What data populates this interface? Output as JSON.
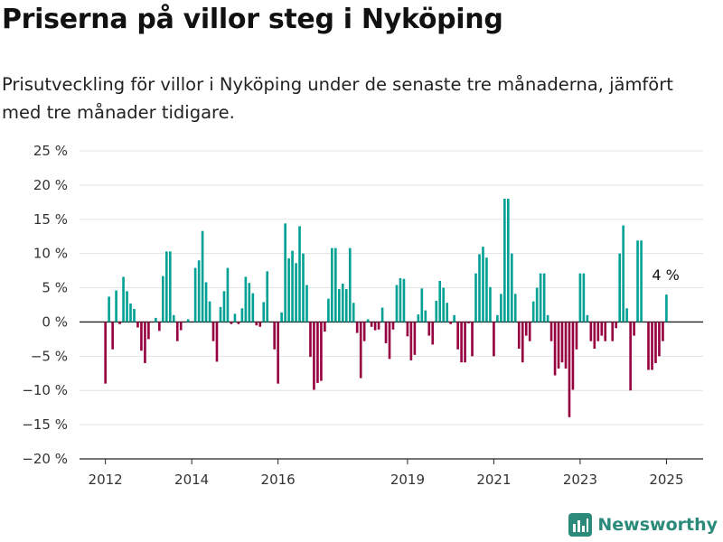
{
  "title": "Priserna på villor steg i Nyköping",
  "subtitle": "Prisutveckling för villor i Nyköping under de senaste tre månaderna, jämfört med tre månader tidigare.",
  "brand": "Newsworthy",
  "colors": {
    "positive": "#00a195",
    "negative": "#960040",
    "grid": "#e3e3e3",
    "zero": "#222222",
    "brand": "#2b8a7a"
  },
  "chart_data": {
    "type": "bar",
    "y_tick_labels": [
      "25 %",
      "20 %",
      "15 %",
      "10 %",
      "5 %",
      "0 %",
      "−5 %",
      "−10 %",
      "−15 %",
      "−20 %"
    ],
    "y_ticks": [
      25,
      20,
      15,
      10,
      5,
      0,
      -5,
      -10,
      -15,
      -20
    ],
    "ylim": [
      -20,
      25
    ],
    "x_tick_labels": [
      "2012",
      "2014",
      "2016",
      "2019",
      "2021",
      "2023",
      "2025"
    ],
    "x_ticks": [
      2012.0,
      2014.0,
      2016.0,
      2019.0,
      2021.0,
      2023.0,
      2025.0
    ],
    "xlim": [
      2011.4,
      2025.85
    ],
    "grid": true,
    "annotation": {
      "text": "4 %",
      "x": 2025.0,
      "y": 4
    },
    "x": [
      2012.0,
      2012.083,
      2012.167,
      2012.25,
      2012.333,
      2012.417,
      2012.5,
      2012.583,
      2012.667,
      2012.75,
      2012.833,
      2012.917,
      2013.0,
      2013.083,
      2013.167,
      2013.25,
      2013.333,
      2013.417,
      2013.5,
      2013.583,
      2013.667,
      2013.75,
      2013.833,
      2013.917,
      2014.0,
      2014.083,
      2014.167,
      2014.25,
      2014.333,
      2014.417,
      2014.5,
      2014.583,
      2014.667,
      2014.75,
      2014.833,
      2014.917,
      2015.0,
      2015.083,
      2015.167,
      2015.25,
      2015.333,
      2015.417,
      2015.5,
      2015.583,
      2015.667,
      2015.75,
      2015.833,
      2015.917,
      2016.0,
      2016.083,
      2016.167,
      2016.25,
      2016.333,
      2016.417,
      2016.5,
      2016.583,
      2016.667,
      2016.75,
      2016.833,
      2016.917,
      2017.0,
      2017.083,
      2017.167,
      2017.25,
      2017.333,
      2017.417,
      2017.5,
      2017.583,
      2017.667,
      2017.75,
      2017.833,
      2017.917,
      2018.0,
      2018.083,
      2018.167,
      2018.25,
      2018.333,
      2018.417,
      2018.5,
      2018.583,
      2018.667,
      2018.75,
      2018.833,
      2018.917,
      2019.0,
      2019.083,
      2019.167,
      2019.25,
      2019.333,
      2019.417,
      2019.5,
      2019.583,
      2019.667,
      2019.75,
      2019.833,
      2019.917,
      2020.0,
      2020.083,
      2020.167,
      2020.25,
      2020.333,
      2020.417,
      2020.5,
      2020.583,
      2020.667,
      2020.75,
      2020.833,
      2020.917,
      2021.0,
      2021.083,
      2021.167,
      2021.25,
      2021.333,
      2021.417,
      2021.5,
      2021.583,
      2021.667,
      2021.75,
      2021.833,
      2021.917,
      2022.0,
      2022.083,
      2022.167,
      2022.25,
      2022.333,
      2022.417,
      2022.5,
      2022.583,
      2022.667,
      2022.75,
      2022.833,
      2022.917,
      2023.0,
      2023.083,
      2023.167,
      2023.25,
      2023.333,
      2023.417,
      2023.5,
      2023.583,
      2023.667,
      2023.75,
      2023.833,
      2023.917,
      2024.0,
      2024.083,
      2024.167,
      2024.25,
      2024.333,
      2024.417,
      2024.5,
      2024.583,
      2024.667,
      2024.75,
      2024.833,
      2024.917,
      2025.0
    ],
    "values": [
      -9,
      3.7,
      -4,
      4.6,
      -0.3,
      6.6,
      4.5,
      2.7,
      1.9,
      -0.8,
      -4.2,
      -6,
      -2.5,
      0,
      0.6,
      -1.3,
      6.7,
      10.3,
      10.3,
      1,
      -2.8,
      -1.2,
      0,
      0.4,
      0,
      7.9,
      9,
      13.3,
      5.8,
      3,
      -2.8,
      -5.8,
      2.2,
      4.5,
      7.9,
      -0.3,
      1.2,
      -0.3,
      2,
      6.6,
      5.7,
      4.2,
      -0.5,
      -0.7,
      2.9,
      7.4,
      0,
      -4,
      -9,
      1.4,
      14.4,
      9.3,
      10.4,
      8.6,
      14,
      10,
      5.4,
      -5.1,
      -9.9,
      -8.9,
      -8.6,
      -1.4,
      3.4,
      10.8,
      10.8,
      4.8,
      5.6,
      4.8,
      10.8,
      2.8,
      -1.6,
      -8.2,
      -2.8,
      0.4,
      -0.7,
      -1.2,
      -1.1,
      2.1,
      -3.1,
      -5.4,
      -1.1,
      5.4,
      6.4,
      6.3,
      -2.1,
      -5.6,
      -4.8,
      1.1,
      4.9,
      1.7,
      -2,
      -3.3,
      3.1,
      6,
      5,
      2.8,
      -0.3,
      1,
      -4,
      -5.9,
      -5.9,
      -0.2,
      -5,
      7.1,
      9.9,
      11,
      9.4,
      5.1,
      -5,
      1,
      4.1,
      18,
      18,
      10,
      4.1,
      -3.9,
      -5.9,
      -2,
      -2.8,
      3,
      5,
      7.1,
      7.1,
      1,
      -2.8,
      -7.8,
      -6.8,
      -5.9,
      -6.8,
      -13.9,
      -9.9,
      -4,
      7.1,
      7.1,
      1,
      -2.8,
      -3.9,
      -2.8,
      -2,
      -2.8,
      0,
      -2.8,
      -0.9,
      10,
      14.1,
      2,
      -10,
      -2,
      11.9,
      11.9,
      0,
      -7,
      -7,
      -6,
      -5,
      -2.8,
      4
    ]
  }
}
